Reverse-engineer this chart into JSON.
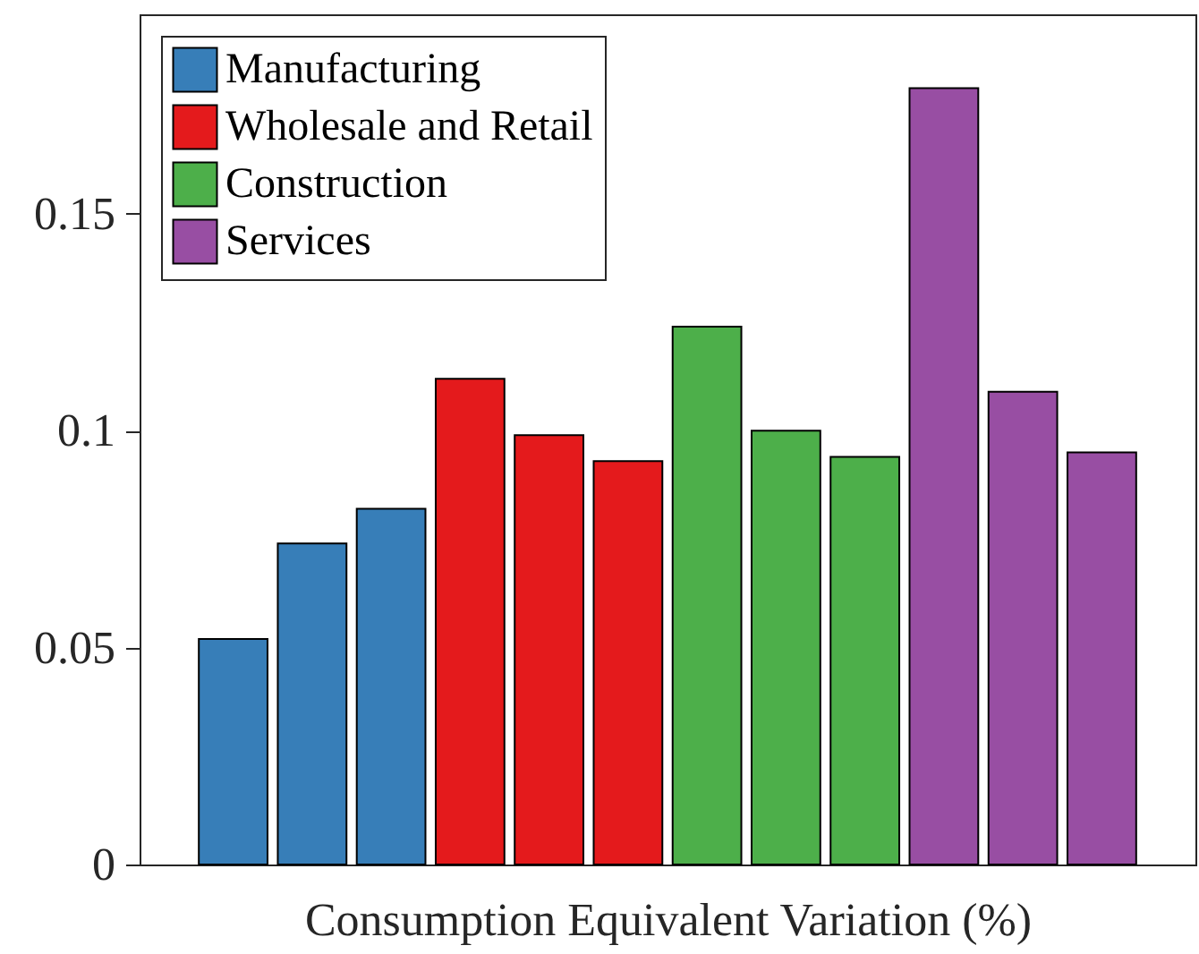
{
  "chart_data": {
    "type": "bar",
    "xlabel": "Consumption Equivalent Variation (%)",
    "stacked": true,
    "categories": [
      null,
      null,
      null,
      null,
      null,
      null,
      null,
      null,
      null,
      null,
      null,
      null
    ],
    "series": [
      {
        "name": "Manufacturing",
        "color": "#377eb8",
        "values": [
          0.052,
          0.074,
          0.082,
          0,
          0,
          0,
          0,
          0,
          0,
          0,
          0,
          0
        ]
      },
      {
        "name": "Wholesale and Retail",
        "color": "#e41a1c",
        "values": [
          0,
          0,
          0,
          0.112,
          0.099,
          0.093,
          0,
          0,
          0,
          0,
          0,
          0
        ]
      },
      {
        "name": "Construction",
        "color": "#4daf4a",
        "values": [
          0,
          0,
          0,
          0,
          0,
          0,
          0.124,
          0.1,
          0.094,
          0,
          0,
          0
        ]
      },
      {
        "name": "Services",
        "color": "#984ea3",
        "values": [
          0,
          0,
          0,
          0,
          0,
          0,
          0,
          0,
          0,
          0.179,
          0.109,
          0.095
        ]
      }
    ],
    "ylim": [
      0,
      0.196
    ],
    "yticks": [
      0,
      0.05,
      0.1,
      0.15
    ],
    "grid": false,
    "legend": "top left"
  }
}
